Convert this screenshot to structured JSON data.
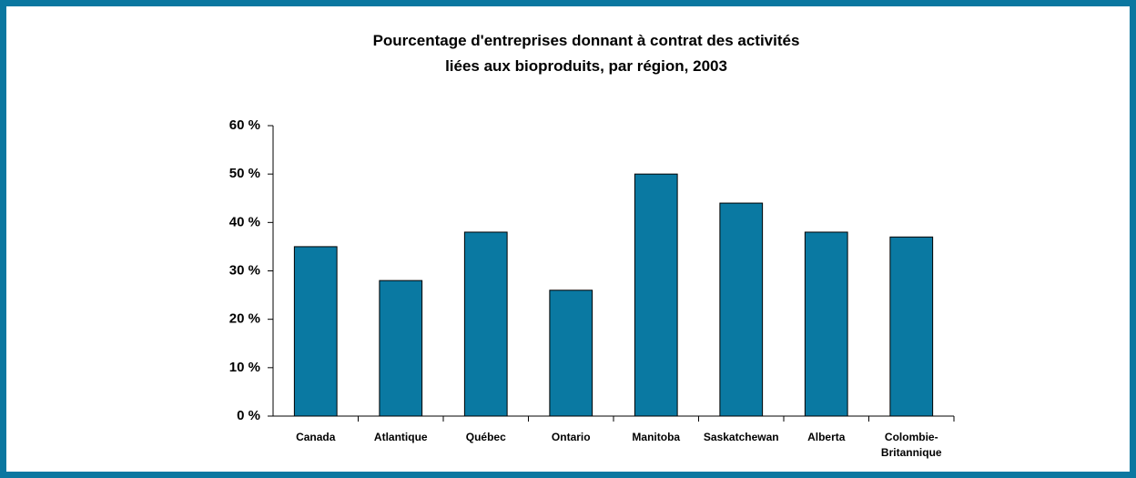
{
  "chart_data": {
    "type": "bar",
    "title": [
      "Pourcentage d'entreprises donnant à contrat des activités",
      "liées aux bioproduits, par région, 2003"
    ],
    "categories": [
      "Canada",
      "Atlantique",
      "Québec",
      "Ontario",
      "Manitoba",
      "Saskatchewan",
      "Alberta",
      "Colombie-Britannique"
    ],
    "values": [
      35,
      28,
      38,
      26,
      50,
      44,
      38,
      37
    ],
    "color": "#0a79a2",
    "ylim": [
      0,
      60
    ],
    "yticks": [
      {
        "value": 0,
        "label": "0 %"
      },
      {
        "value": 10,
        "label": "10 %"
      },
      {
        "value": 20,
        "label": "20 %"
      },
      {
        "value": 30,
        "label": "30 %"
      },
      {
        "value": 40,
        "label": "40 %"
      },
      {
        "value": 50,
        "label": "50 %"
      },
      {
        "value": 60,
        "label": "60 %"
      }
    ],
    "grid": false
  }
}
